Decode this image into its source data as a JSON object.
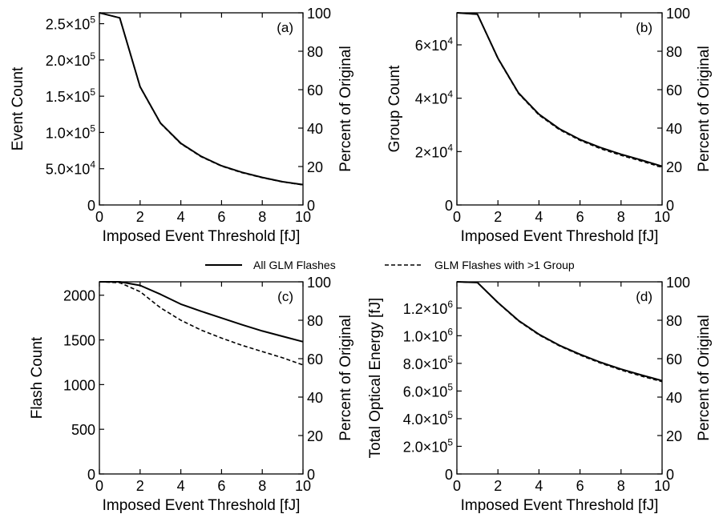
{
  "legend": {
    "solid_label": "All GLM Flashes",
    "dashed_label": "GLM Flashes with >1 Group"
  },
  "chart_data": [
    {
      "type": "line",
      "panel": "(a)",
      "xlabel": "Imposed Event Threshold [fJ]",
      "ylabel": "Event Count",
      "ylabel_right": "Percent of Original",
      "xlim": [
        0,
        10
      ],
      "ylim": [
        0,
        265000
      ],
      "ylim_right": [
        0,
        100
      ],
      "x_ticks": [
        0,
        2,
        4,
        6,
        8,
        10
      ],
      "y_ticks": [
        {
          "value": 0,
          "label": "0"
        },
        {
          "value": 50000,
          "label": "5.0×10",
          "exp": "4"
        },
        {
          "value": 100000,
          "label": "1.0×10",
          "exp": "5"
        },
        {
          "value": 150000,
          "label": "1.5×10",
          "exp": "5"
        },
        {
          "value": 200000,
          "label": "2.0×10",
          "exp": "5"
        },
        {
          "value": 250000,
          "label": "2.5×10",
          "exp": "5"
        }
      ],
      "y_ticks_right": [
        0,
        20,
        40,
        60,
        80,
        100
      ],
      "x": [
        0,
        1,
        2,
        3,
        4,
        5,
        6,
        7,
        8,
        9,
        10
      ],
      "series": [
        {
          "name": "All GLM Flashes",
          "style": "solid",
          "values": [
            265000,
            258000,
            163000,
            113000,
            85000,
            67000,
            54000,
            45000,
            38000,
            32000,
            28000
          ]
        },
        {
          "name": "GLM Flashes with >1 Group",
          "style": "dashed",
          "values": [
            265000,
            258000,
            162500,
            112500,
            84500,
            66500,
            53500,
            44500,
            37500,
            31800,
            27600
          ]
        }
      ],
      "grid": false
    },
    {
      "type": "line",
      "panel": "(b)",
      "xlabel": "Imposed Event Threshold [fJ]",
      "ylabel": "Group Count",
      "ylabel_right": "Percent of Original",
      "xlim": [
        0,
        10
      ],
      "ylim": [
        0,
        72000
      ],
      "ylim_right": [
        0,
        100
      ],
      "x_ticks": [
        0,
        2,
        4,
        6,
        8,
        10
      ],
      "y_ticks": [
        {
          "value": 0,
          "label": "0"
        },
        {
          "value": 20000,
          "label": "2×10",
          "exp": "4"
        },
        {
          "value": 40000,
          "label": "4×10",
          "exp": "4"
        },
        {
          "value": 60000,
          "label": "6×10",
          "exp": "4"
        }
      ],
      "y_ticks_right": [
        0,
        20,
        40,
        60,
        80,
        100
      ],
      "x": [
        0,
        1,
        2,
        3,
        4,
        5,
        6,
        7,
        8,
        9,
        10
      ],
      "series": [
        {
          "name": "All GLM Flashes",
          "style": "solid",
          "values": [
            72000,
            71500,
            55000,
            42000,
            34000,
            28500,
            24500,
            21500,
            19000,
            16800,
            14500
          ]
        },
        {
          "name": "GLM Flashes with >1 Group",
          "style": "dashed",
          "values": [
            72000,
            71500,
            54800,
            41800,
            33700,
            28200,
            24200,
            21100,
            18600,
            16400,
            14100
          ]
        }
      ],
      "grid": false
    },
    {
      "type": "line",
      "panel": "(c)",
      "xlabel": "Imposed Event Threshold [fJ]",
      "ylabel": "Flash Count",
      "ylabel_right": "Percent of Original",
      "xlim": [
        0,
        10
      ],
      "ylim": [
        0,
        2150
      ],
      "ylim_right": [
        0,
        100
      ],
      "x_ticks": [
        0,
        2,
        4,
        6,
        8,
        10
      ],
      "y_ticks": [
        {
          "value": 0,
          "label": "0"
        },
        {
          "value": 500,
          "label": "500"
        },
        {
          "value": 1000,
          "label": "1000"
        },
        {
          "value": 1500,
          "label": "1500"
        },
        {
          "value": 2000,
          "label": "2000"
        }
      ],
      "y_ticks_right": [
        0,
        20,
        40,
        60,
        80,
        100
      ],
      "x": [
        0,
        1,
        2,
        3,
        4,
        5,
        6,
        7,
        8,
        9,
        10
      ],
      "series": [
        {
          "name": "All GLM Flashes",
          "style": "solid",
          "values": [
            2150,
            2150,
            2110,
            2010,
            1900,
            1820,
            1745,
            1670,
            1600,
            1540,
            1480
          ]
        },
        {
          "name": "GLM Flashes with >1 Group",
          "style": "dashed",
          "values": [
            2150,
            2140,
            2040,
            1860,
            1720,
            1610,
            1520,
            1440,
            1370,
            1300,
            1220
          ]
        }
      ],
      "grid": false
    },
    {
      "type": "line",
      "panel": "(d)",
      "xlabel": "Imposed Event Threshold [fJ]",
      "ylabel": "Total Optical Energy [fJ]",
      "ylabel_right": "Percent of Original",
      "xlim": [
        0,
        10
      ],
      "ylim": [
        0,
        1390000
      ],
      "ylim_right": [
        0,
        100
      ],
      "x_ticks": [
        0,
        2,
        4,
        6,
        8,
        10
      ],
      "y_ticks": [
        {
          "value": 0,
          "label": "0"
        },
        {
          "value": 200000,
          "label": "2.0×10",
          "exp": "5"
        },
        {
          "value": 400000,
          "label": "4.0×10",
          "exp": "5"
        },
        {
          "value": 600000,
          "label": "6.0×10",
          "exp": "5"
        },
        {
          "value": 800000,
          "label": "8.0×10",
          "exp": "5"
        },
        {
          "value": 1000000,
          "label": "1.0×10",
          "exp": "6"
        },
        {
          "value": 1200000,
          "label": "1.2×10",
          "exp": "6"
        }
      ],
      "y_ticks_right": [
        0,
        20,
        40,
        60,
        80,
        100
      ],
      "x": [
        0,
        1,
        2,
        3,
        4,
        5,
        6,
        7,
        8,
        9,
        10
      ],
      "series": [
        {
          "name": "All GLM Flashes",
          "style": "solid",
          "values": [
            1390000,
            1385000,
            1240000,
            1110000,
            1010000,
            930000,
            865000,
            808000,
            758000,
            715000,
            675000
          ]
        },
        {
          "name": "GLM Flashes with >1 Group",
          "style": "dashed",
          "values": [
            1390000,
            1385000,
            1238000,
            1107000,
            1006000,
            926000,
            860000,
            802000,
            752000,
            708000,
            668000
          ]
        }
      ],
      "grid": false
    }
  ]
}
